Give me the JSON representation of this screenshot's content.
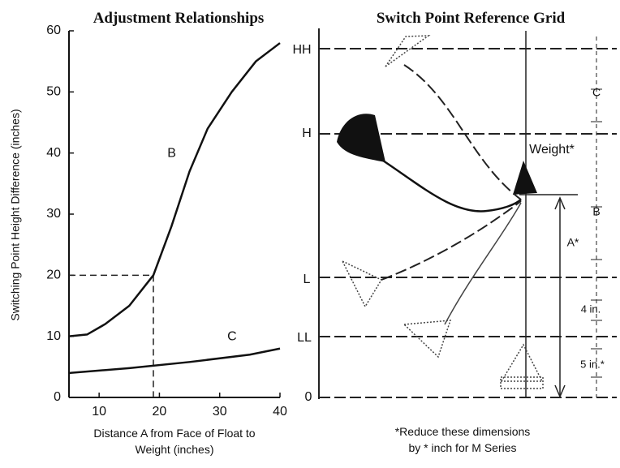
{
  "chart_data": {
    "type": "line",
    "title": "Adjustment Relationships",
    "x_label": "Distance A from Face of Float to Weight (inches)",
    "y_label": "Switching Point Height Difference (inches)",
    "xlim": [
      5,
      40
    ],
    "ylim": [
      0,
      60
    ],
    "xticks": [
      10,
      20,
      30,
      40
    ],
    "yticks": [
      0,
      10,
      20,
      30,
      40,
      50,
      60
    ],
    "reference_point": {
      "x": 19,
      "y": 20
    },
    "series": [
      {
        "name": "B",
        "color": "#111111",
        "x": [
          5,
          8,
          11,
          15,
          19,
          22,
          25,
          28,
          32,
          36,
          40
        ],
        "values": [
          10,
          10.3,
          12,
          15,
          20,
          28,
          37,
          44,
          50,
          55,
          58
        ]
      },
      {
        "name": "C",
        "color": "#111111",
        "x": [
          5,
          15,
          25,
          35,
          40
        ],
        "values": [
          4,
          4.8,
          5.8,
          7,
          8
        ]
      }
    ]
  },
  "diagram": {
    "title": "Switch Point Reference Grid",
    "levels": [
      "HH",
      "H",
      "L",
      "LL",
      "0"
    ],
    "weight_label": "Weight*",
    "dimensions": {
      "c": "C",
      "b": "B",
      "a": "A*",
      "four": "4 in.",
      "five": "5 in.*"
    },
    "footnote": [
      "*Reduce these dimensions",
      "by * inch for M Series"
    ]
  }
}
